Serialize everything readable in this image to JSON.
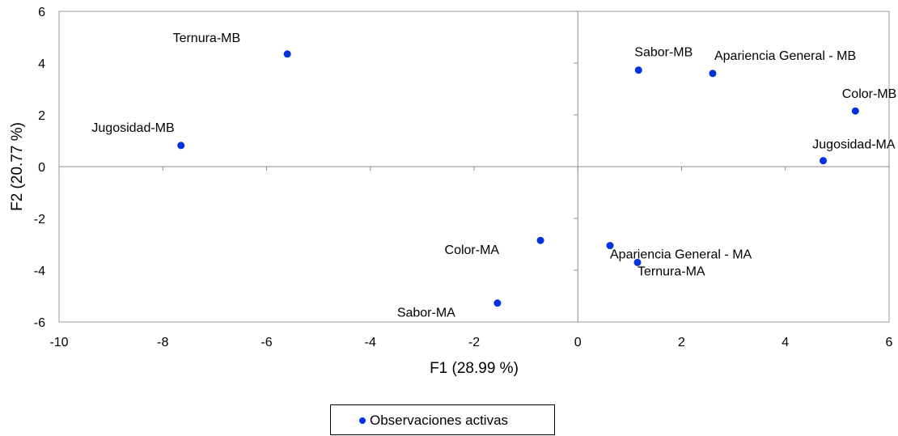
{
  "chart_data": {
    "type": "scatter",
    "title": "",
    "xlabel": "F1 (28.99 %)",
    "ylabel": "F2 (20.77 %)",
    "xlim": [
      -10,
      6
    ],
    "ylim": [
      -6,
      6
    ],
    "xticks": [
      -10,
      -8,
      -6,
      -4,
      -2,
      0,
      2,
      4,
      6
    ],
    "yticks": [
      -6,
      -4,
      -2,
      0,
      2,
      4,
      6
    ],
    "grid": false,
    "series": [
      {
        "name": "Observaciones activas",
        "color": "#0033dd",
        "points": [
          {
            "label": "Ternura-MB",
            "x": -5.6,
            "y": 4.35
          },
          {
            "label": "Jugosidad-MB",
            "x": -7.65,
            "y": 0.82
          },
          {
            "label": "Sabor-MB",
            "x": 1.17,
            "y": 3.73
          },
          {
            "label": "Apariencia General - MB",
            "x": 2.6,
            "y": 3.6
          },
          {
            "label": "Color-MB",
            "x": 5.35,
            "y": 2.15
          },
          {
            "label": "Jugosidad-MA",
            "x": 4.73,
            "y": 0.23
          },
          {
            "label": "Color-MA",
            "x": -0.72,
            "y": -2.85
          },
          {
            "label": "Sabor-MA",
            "x": -1.55,
            "y": -5.27
          },
          {
            "label": "Apariencia General - MA",
            "x": 0.62,
            "y": -3.05
          },
          {
            "label": "Ternura-MA",
            "x": 1.15,
            "y": -3.7
          }
        ]
      }
    ],
    "legend": {
      "position": "bottom",
      "entries": [
        "Observaciones activas"
      ]
    }
  }
}
